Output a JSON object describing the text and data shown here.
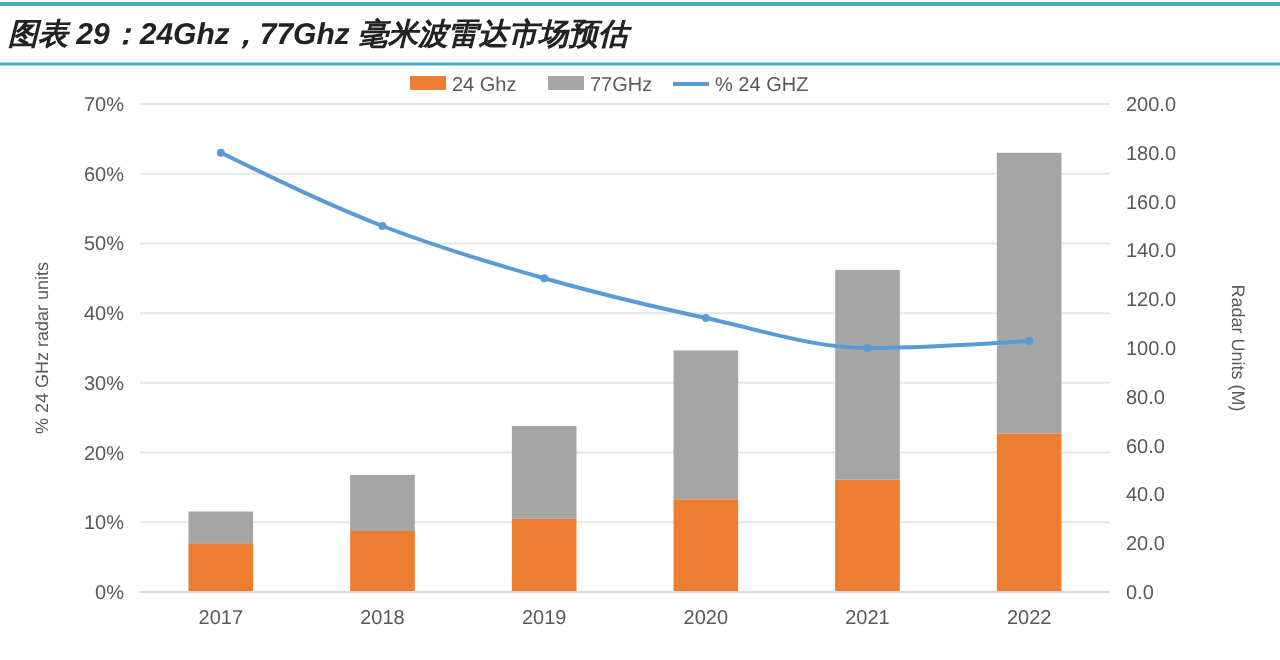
{
  "chart_data": {
    "type": "bar",
    "title": "图表 29：24Ghz，77Ghz 毫米波雷达市场预估",
    "categories": [
      "2017",
      "2018",
      "2019",
      "2020",
      "2021",
      "2022"
    ],
    "stacked": true,
    "ylabel": "% 24 GHz radar units",
    "y2label": "Radar Units (M)",
    "ylim": [
      0,
      70
    ],
    "yticks": [
      {
        "value": 0,
        "label": "0%"
      },
      {
        "value": 10,
        "label": "10%"
      },
      {
        "value": 20,
        "label": "20%"
      },
      {
        "value": 30,
        "label": "30%"
      },
      {
        "value": 40,
        "label": "40%"
      },
      {
        "value": 50,
        "label": "50%"
      },
      {
        "value": 60,
        "label": "60%"
      },
      {
        "value": 70,
        "label": "70%"
      }
    ],
    "y2lim": [
      0,
      200
    ],
    "y2ticks": [
      {
        "value": 0,
        "label": "0.0"
      },
      {
        "value": 20,
        "label": "20.0"
      },
      {
        "value": 40,
        "label": "40.0"
      },
      {
        "value": 60,
        "label": "60.0"
      },
      {
        "value": 80,
        "label": "80.0"
      },
      {
        "value": 100,
        "label": "100.0"
      },
      {
        "value": 120,
        "label": "120.0"
      },
      {
        "value": 140,
        "label": "140.0"
      },
      {
        "value": 160,
        "label": "160.0"
      },
      {
        "value": 180,
        "label": "180.0"
      },
      {
        "value": 200,
        "label": "200.0"
      }
    ],
    "grid": "y",
    "legend": "top",
    "series": [
      {
        "name": "24 Ghz",
        "axis": "y2",
        "color": "#ed7d31",
        "values": [
          20,
          25,
          30,
          38,
          46,
          65
        ]
      },
      {
        "name": "77GHz",
        "axis": "y2",
        "color": "#a5a5a5",
        "values": [
          13,
          23,
          38,
          61,
          86,
          115
        ]
      },
      {
        "name": "% 24 GHZ",
        "type": "line",
        "axis": "y",
        "color": "#5b9bd5",
        "marker": "circle",
        "line_style": "solid",
        "values": [
          63,
          52.5,
          45,
          39.3,
          35,
          36
        ]
      }
    ]
  }
}
